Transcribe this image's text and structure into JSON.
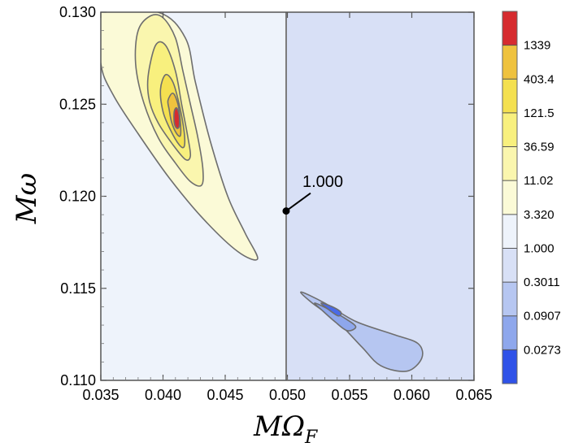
{
  "chart_data": {
    "type": "contour",
    "xlabel": "MΩ",
    "xlabel_sub": "F",
    "ylabel": "Mω",
    "xlim": [
      0.035,
      0.065
    ],
    "ylim": [
      0.11,
      0.13
    ],
    "xticks": [
      "0.035",
      "0.040",
      "0.045",
      "0.050",
      "0.055",
      "0.060",
      "0.065"
    ],
    "yticks": [
      "0.110",
      "0.115",
      "0.120",
      "0.125",
      "0.130"
    ],
    "annotation": {
      "text": "1.000",
      "x": 0.0499,
      "y": 0.1192
    },
    "colorbar": {
      "levels": [
        "1339",
        "403.4",
        "121.5",
        "36.59",
        "11.02",
        "3.320",
        "1.000",
        "0.3011",
        "0.0907",
        "0.0273"
      ],
      "colors": [
        "#d62b2f",
        "#efc23e",
        "#f4e050",
        "#f8f07e",
        "#faf6ae",
        "#fbfad7",
        "#eef3fb",
        "#d8e0f6",
        "#b6c6f1",
        "#8ea7ec",
        "#2f52e8"
      ]
    },
    "regions": {
      "left_fill": "#eef3fb",
      "right_fill": "#d8e0f6",
      "boundary_x": 0.0499
    },
    "upper_contours": [
      {
        "level": "3.320",
        "color": "#fbfad7",
        "points": [
          [
            0.035,
            0.1272
          ],
          [
            0.035,
            0.13
          ],
          [
            0.0396,
            0.13
          ],
          [
            0.0418,
            0.1286
          ],
          [
            0.0426,
            0.1262
          ],
          [
            0.0438,
            0.123
          ],
          [
            0.0452,
            0.12
          ],
          [
            0.0466,
            0.118
          ],
          [
            0.0476,
            0.1166
          ],
          [
            0.046,
            0.117
          ],
          [
            0.0432,
            0.1188
          ],
          [
            0.0405,
            0.121
          ],
          [
            0.038,
            0.1234
          ],
          [
            0.036,
            0.1255
          ]
        ]
      },
      {
        "level": "11.02",
        "color": "#faf6ae",
        "points": [
          [
            0.038,
            0.129
          ],
          [
            0.039,
            0.1298
          ],
          [
            0.04,
            0.1297
          ],
          [
            0.041,
            0.1286
          ],
          [
            0.0416,
            0.1268
          ],
          [
            0.0422,
            0.125
          ],
          [
            0.0428,
            0.1232
          ],
          [
            0.0432,
            0.1215
          ],
          [
            0.0431,
            0.1206
          ],
          [
            0.0422,
            0.1208
          ],
          [
            0.041,
            0.1218
          ],
          [
            0.0396,
            0.1232
          ],
          [
            0.0384,
            0.1252
          ],
          [
            0.0378,
            0.1272
          ]
        ]
      },
      {
        "level": "36.59",
        "color": "#f8f07e",
        "points": [
          [
            0.0388,
            0.1265
          ],
          [
            0.0394,
            0.1282
          ],
          [
            0.0402,
            0.1282
          ],
          [
            0.041,
            0.1268
          ],
          [
            0.0415,
            0.125
          ],
          [
            0.042,
            0.1232
          ],
          [
            0.0422,
            0.1222
          ],
          [
            0.0418,
            0.122
          ],
          [
            0.0408,
            0.1228
          ],
          [
            0.0396,
            0.124
          ],
          [
            0.0389,
            0.1252
          ]
        ]
      },
      {
        "level": "121.5",
        "color": "#f4e050",
        "points": [
          [
            0.0398,
            0.1258
          ],
          [
            0.0402,
            0.1266
          ],
          [
            0.0408,
            0.1262
          ],
          [
            0.0413,
            0.125
          ],
          [
            0.0417,
            0.1235
          ],
          [
            0.0417,
            0.1227
          ],
          [
            0.0413,
            0.1228
          ],
          [
            0.0406,
            0.1236
          ],
          [
            0.04,
            0.1246
          ]
        ]
      },
      {
        "level": "403.4",
        "color": "#efc23e",
        "points": [
          [
            0.0404,
            0.1252
          ],
          [
            0.0408,
            0.1256
          ],
          [
            0.0412,
            0.125
          ],
          [
            0.0414,
            0.124
          ],
          [
            0.0414,
            0.1233
          ],
          [
            0.0411,
            0.1234
          ],
          [
            0.0407,
            0.124
          ],
          [
            0.0405,
            0.1247
          ]
        ]
      },
      {
        "level": "1339",
        "color": "#d62b2f",
        "points": [
          [
            0.0409,
            0.1246
          ],
          [
            0.0411,
            0.1248
          ],
          [
            0.0413,
            0.1244
          ],
          [
            0.0413,
            0.1238
          ],
          [
            0.0411,
            0.1237
          ],
          [
            0.0409,
            0.124
          ]
        ]
      }
    ],
    "lower_contours": [
      {
        "level": "0.3011",
        "color": "#b6c6f1",
        "points": [
          [
            0.0511,
            0.1148
          ],
          [
            0.053,
            0.1142
          ],
          [
            0.0555,
            0.1132
          ],
          [
            0.0585,
            0.1125
          ],
          [
            0.0605,
            0.112
          ],
          [
            0.0608,
            0.1112
          ],
          [
            0.0596,
            0.1105
          ],
          [
            0.0575,
            0.1108
          ],
          [
            0.056,
            0.1118
          ],
          [
            0.054,
            0.1132
          ],
          [
            0.052,
            0.1142
          ]
        ]
      },
      {
        "level": "0.0907",
        "color": "#8ea7ec",
        "points": [
          [
            0.0522,
            0.1142
          ],
          [
            0.0535,
            0.1138
          ],
          [
            0.0548,
            0.1133
          ],
          [
            0.0555,
            0.1129
          ],
          [
            0.0548,
            0.1127
          ],
          [
            0.0538,
            0.1132
          ],
          [
            0.0528,
            0.1138
          ]
        ]
      },
      {
        "level": "0.0273",
        "color": "#4a6ae8",
        "points": [
          [
            0.0527,
            0.1142
          ],
          [
            0.0536,
            0.114
          ],
          [
            0.0543,
            0.1137
          ],
          [
            0.0541,
            0.1135
          ],
          [
            0.0534,
            0.1138
          ]
        ]
      }
    ]
  }
}
